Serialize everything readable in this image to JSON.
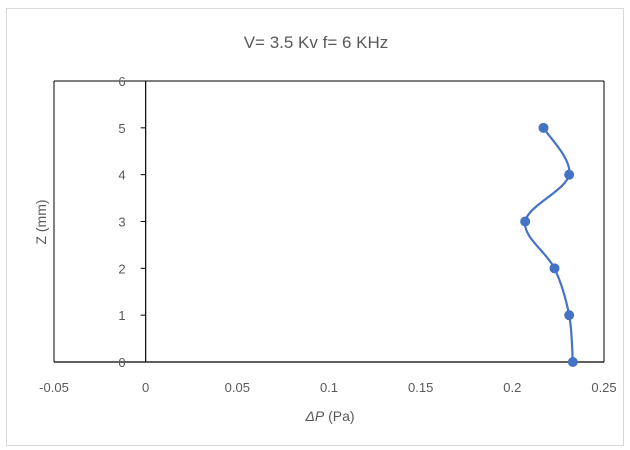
{
  "chart_data": {
    "type": "scatter",
    "title": "V= 3.5 Kv f= 6 KHz",
    "xlabel_symbol": "ΔP",
    "xlabel_unit": " (Pa)",
    "ylabel": "Z (mm)",
    "xlim": [
      -0.05,
      0.25
    ],
    "ylim": [
      0,
      6
    ],
    "x_ticks": [
      "-0.05",
      "0",
      "0.05",
      "0.1",
      "0.15",
      "0.2",
      "0.25"
    ],
    "y_ticks": [
      "0",
      "1",
      "2",
      "3",
      "4",
      "5",
      "6"
    ],
    "grid": false,
    "line_style": "smoothed line with markers",
    "color": "#4472c4",
    "series": [
      {
        "points": [
          {
            "x": 0.233,
            "y": 0
          },
          {
            "x": 0.231,
            "y": 1
          },
          {
            "x": 0.223,
            "y": 2
          },
          {
            "x": 0.207,
            "y": 3
          },
          {
            "x": 0.231,
            "y": 4
          },
          {
            "x": 0.217,
            "y": 5
          }
        ]
      }
    ]
  }
}
